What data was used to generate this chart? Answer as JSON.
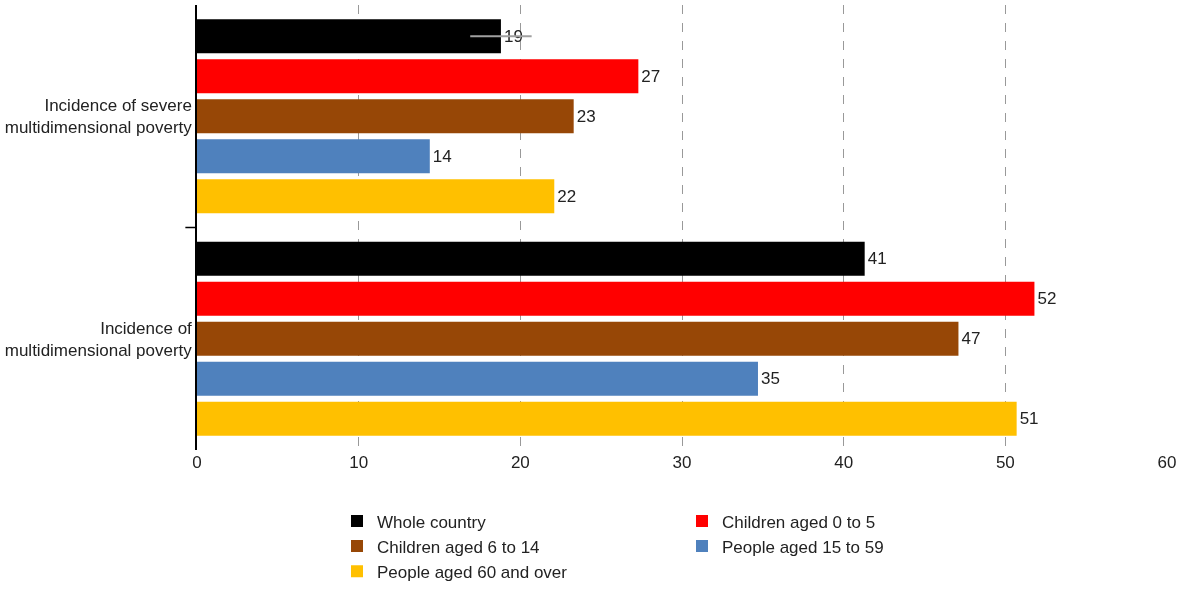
{
  "chart_data": {
    "type": "bar",
    "orientation": "horizontal",
    "categories": [
      "Incidence of severe multidimensional poverty",
      "Incidence of multidimensional poverty"
    ],
    "series": [
      {
        "name": "Whole country",
        "color": "#000000",
        "values": [
          18.8,
          41.3
        ],
        "value_labels": [
          "19",
          "41"
        ],
        "errors": [
          1.9,
          null
        ]
      },
      {
        "name": "Children aged 0 to 5",
        "color": "#ff0000",
        "values": [
          27.3,
          51.8
        ],
        "value_labels": [
          "27",
          "52"
        ]
      },
      {
        "name": "Children aged 6 to 14",
        "color": "#974706",
        "values": [
          23.3,
          47.1
        ],
        "value_labels": [
          "23",
          "47"
        ]
      },
      {
        "name": "People aged 15 to 59",
        "color": "#4f81bd",
        "values": [
          14.4,
          34.7
        ],
        "value_labels": [
          "14",
          "35"
        ]
      },
      {
        "name": "People aged 60 and over",
        "color": "#ffc000",
        "values": [
          22.1,
          50.7
        ],
        "value_labels": [
          "22",
          "51"
        ]
      }
    ],
    "xlim": [
      0,
      60
    ],
    "xticks": [
      0,
      10,
      20,
      30,
      40,
      50,
      60
    ],
    "grid": "x",
    "legend": "bottom"
  }
}
